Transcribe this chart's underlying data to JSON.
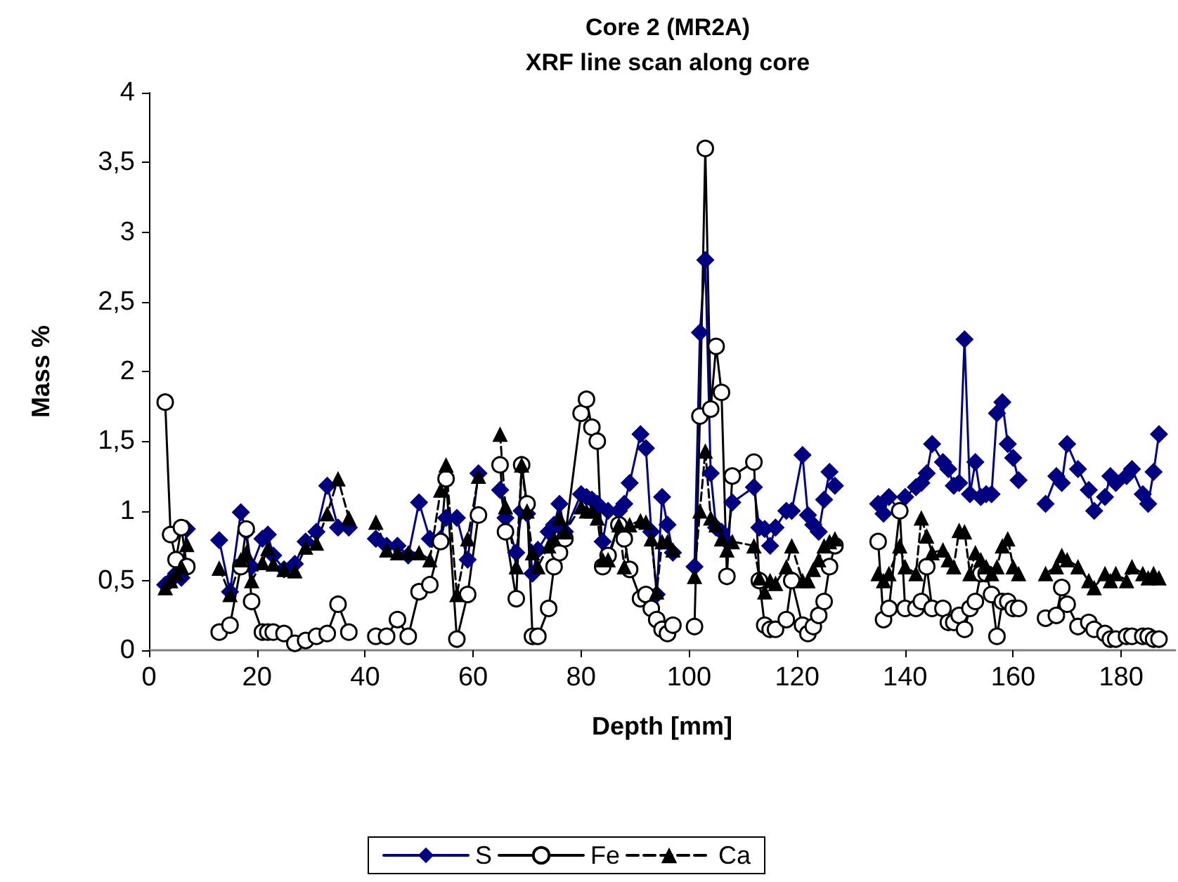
{
  "chart_data": {
    "type": "line",
    "title": "Core 2 (MR2A)",
    "subtitle": "XRF line scan along core",
    "xlabel": "Depth [mm]",
    "ylabel": "Mass %",
    "x": [
      3,
      4,
      5,
      6,
      7,
      10,
      13,
      15,
      17,
      18,
      19,
      21,
      22,
      23,
      25,
      27,
      29,
      31,
      33,
      35,
      37,
      40,
      42,
      44,
      46,
      48,
      50,
      52,
      54,
      55,
      57,
      59,
      61,
      63,
      65,
      66,
      68,
      69,
      70,
      71,
      72,
      74,
      75,
      76,
      77,
      80,
      81,
      82,
      83,
      84,
      85,
      87,
      88,
      89,
      91,
      92,
      93,
      94,
      95,
      96,
      97,
      99,
      101,
      102,
      103,
      104,
      105,
      106,
      107,
      108,
      112,
      113,
      114,
      115,
      116,
      118,
      119,
      121,
      122,
      123,
      124,
      125,
      126,
      127,
      131,
      135,
      136,
      137,
      139,
      140,
      142,
      143,
      144,
      145,
      147,
      148,
      149,
      150,
      151,
      152,
      153,
      154,
      155,
      156,
      157,
      158,
      159,
      160,
      161,
      163,
      166,
      168,
      169,
      170,
      172,
      174,
      175,
      177,
      178,
      179,
      181,
      182,
      184,
      185,
      186,
      187
    ],
    "series": [
      {
        "name": "S",
        "color": "#000080",
        "marker": "diamond",
        "line_style": "solid",
        "values": [
          0.47,
          0.5,
          0.55,
          0.52,
          0.87,
          null,
          0.79,
          0.42,
          0.99,
          0.85,
          0.6,
          0.8,
          0.83,
          0.68,
          0.58,
          0.62,
          0.78,
          0.85,
          1.18,
          0.88,
          0.88,
          null,
          0.8,
          0.75,
          0.75,
          0.68,
          1.06,
          0.8,
          0.8,
          0.95,
          0.95,
          0.65,
          1.27,
          null,
          1.15,
          0.95,
          0.7,
          1.0,
          0.98,
          0.55,
          0.72,
          0.85,
          0.9,
          1.05,
          0.85,
          1.12,
          1.1,
          1.08,
          1.05,
          0.78,
          1.0,
          1.0,
          1.05,
          1.2,
          1.55,
          1.45,
          0.85,
          0.4,
          1.1,
          0.9,
          0.7,
          null,
          0.6,
          2.28,
          2.8,
          1.27,
          0.88,
          0.85,
          0.78,
          1.06,
          1.17,
          0.88,
          0.87,
          0.75,
          0.88,
          1.0,
          1.0,
          1.4,
          0.97,
          0.9,
          0.85,
          1.08,
          1.28,
          1.18,
          null,
          1.05,
          0.98,
          1.1,
          1.0,
          1.1,
          1.17,
          1.2,
          1.27,
          1.48,
          1.35,
          1.3,
          1.18,
          1.2,
          2.23,
          1.12,
          1.35,
          1.1,
          1.12,
          1.12,
          1.7,
          1.78,
          1.48,
          1.38,
          1.22,
          null,
          1.05,
          1.25,
          1.2,
          1.48,
          1.3,
          1.15,
          1.0,
          1.1,
          1.25,
          1.2,
          1.25,
          1.3,
          1.12,
          1.05,
          1.28,
          1.55
        ]
      },
      {
        "name": "Fe",
        "color": "#000000",
        "marker": "circle",
        "line_style": "solid",
        "values": [
          1.78,
          0.83,
          0.65,
          0.88,
          0.6,
          null,
          0.13,
          0.18,
          0.6,
          0.87,
          0.35,
          0.13,
          0.13,
          0.13,
          0.12,
          0.05,
          0.07,
          0.1,
          0.12,
          0.33,
          0.13,
          null,
          0.1,
          0.1,
          0.22,
          0.1,
          0.42,
          0.47,
          0.78,
          1.23,
          0.08,
          0.4,
          0.97,
          null,
          1.33,
          0.85,
          0.37,
          1.33,
          1.05,
          0.1,
          0.1,
          0.3,
          0.6,
          0.7,
          0.8,
          1.7,
          1.8,
          1.6,
          1.5,
          0.6,
          0.68,
          0.9,
          0.8,
          0.58,
          0.37,
          0.4,
          0.3,
          0.22,
          0.15,
          0.12,
          0.18,
          null,
          0.17,
          1.68,
          3.6,
          1.73,
          2.18,
          1.85,
          0.53,
          1.25,
          1.35,
          0.5,
          0.18,
          0.15,
          0.15,
          0.22,
          0.5,
          0.18,
          0.12,
          0.17,
          0.25,
          0.35,
          0.6,
          0.75,
          null,
          0.78,
          0.22,
          0.3,
          1.0,
          0.3,
          0.3,
          0.35,
          0.6,
          0.3,
          0.3,
          0.2,
          0.2,
          0.25,
          0.15,
          0.3,
          0.35,
          0.55,
          0.55,
          0.4,
          0.1,
          0.35,
          0.35,
          0.3,
          0.3,
          null,
          0.23,
          0.25,
          0.45,
          0.33,
          0.17,
          0.2,
          0.15,
          0.12,
          0.08,
          0.08,
          0.1,
          0.1,
          0.1,
          0.1,
          0.08,
          0.08
        ]
      },
      {
        "name": "Ca",
        "color": "#000000",
        "marker": "triangle",
        "line_style": "dashed",
        "values": [
          0.45,
          0.5,
          0.55,
          0.6,
          0.76,
          null,
          0.59,
          0.4,
          0.65,
          0.7,
          0.5,
          0.63,
          0.73,
          0.62,
          0.58,
          0.57,
          0.74,
          0.77,
          0.98,
          1.23,
          0.95,
          null,
          0.92,
          0.72,
          0.7,
          0.7,
          0.7,
          0.65,
          1.15,
          1.33,
          0.4,
          0.8,
          1.25,
          null,
          1.55,
          1.03,
          0.6,
          1.33,
          1.0,
          0.7,
          0.6,
          0.75,
          0.8,
          0.95,
          0.85,
          1.03,
          1.0,
          1.0,
          0.95,
          0.65,
          0.65,
          0.9,
          0.6,
          0.9,
          0.93,
          0.92,
          0.8,
          0.42,
          0.78,
          0.78,
          0.72,
          null,
          0.53,
          1.0,
          1.43,
          0.95,
          0.9,
          0.8,
          0.72,
          0.78,
          0.75,
          0.52,
          0.42,
          0.5,
          0.48,
          0.6,
          0.75,
          0.5,
          0.5,
          0.58,
          0.65,
          0.75,
          0.78,
          0.8,
          null,
          0.55,
          0.5,
          0.55,
          0.75,
          0.6,
          0.55,
          0.95,
          0.82,
          0.7,
          0.72,
          0.65,
          0.6,
          0.86,
          0.85,
          0.55,
          0.7,
          0.65,
          0.6,
          0.55,
          0.6,
          0.75,
          0.8,
          0.6,
          0.55,
          null,
          0.55,
          0.6,
          0.68,
          0.65,
          0.6,
          0.5,
          0.45,
          0.55,
          0.5,
          0.55,
          0.5,
          0.6,
          0.55,
          0.52,
          0.55,
          0.52
        ]
      }
    ],
    "xlim": [
      0,
      190
    ],
    "xticks": [
      0,
      20,
      40,
      60,
      80,
      100,
      120,
      140,
      160,
      180
    ],
    "ylim": [
      0,
      4
    ],
    "yticks": [
      0,
      {
        "value": 0.5,
        "label": "0,5"
      },
      1,
      {
        "value": 1.5,
        "label": "1,5"
      },
      2,
      {
        "value": 2.5,
        "label": "2,5"
      },
      3,
      {
        "value": 3.5,
        "label": "3,5"
      },
      4
    ],
    "grid": false,
    "legend": "bottom"
  }
}
